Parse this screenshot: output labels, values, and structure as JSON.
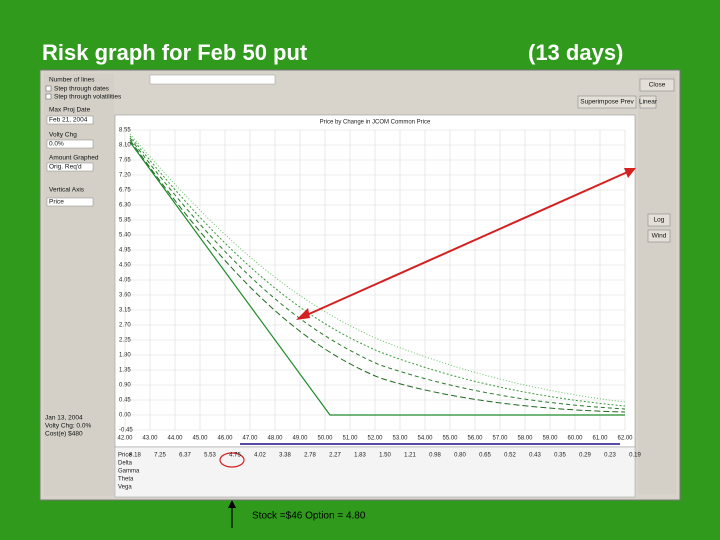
{
  "header": {
    "title": "Risk graph for Feb 50 put",
    "subtitle": "(13 days)"
  },
  "window": {
    "left_panel": [
      "Number of lines",
      "Step through dates",
      "Step through volatilities",
      "Max Proj Date",
      "Feb 21, 2004",
      "Volty Chg",
      "0.0%",
      "Amount Graphed",
      "Orig. Req'd",
      "Vertical Axis",
      "Price"
    ],
    "left_footer": [
      "Jan 13, 2004",
      "Volty Chg: 0.0%",
      "Cost(e) $480"
    ],
    "buttons": [
      "Close",
      "Superimpose Prev",
      "Linear",
      "Log",
      "Wind"
    ],
    "chart_title": "Price by Change in JCOM Common Price",
    "yticks": [
      "8.55",
      "8.10",
      "7.65",
      "7.20",
      "6.75",
      "6.30",
      "5.85",
      "5.40",
      "4.95",
      "4.50",
      "4.05",
      "3.60",
      "3.15",
      "2.70",
      "2.25",
      "1.80",
      "1.35",
      "0.90",
      "0.45",
      "0.00",
      "-0.45"
    ],
    "xticks": [
      "42.00",
      "43.00",
      "44.00",
      "45.00",
      "46.00",
      "47.00",
      "48.00",
      "49.00",
      "50.00",
      "51.00",
      "52.00",
      "53.00",
      "54.00",
      "55.00",
      "56.00",
      "57.00",
      "58.00",
      "59.00",
      "60.00",
      "61.00",
      "62.00"
    ],
    "table": {
      "row_labels": [
        "Price",
        "Delta",
        "Gamma",
        "Theta",
        "Vega"
      ],
      "price_row": [
        "8.18",
        "7.25",
        "6.37",
        "5.53",
        "4.75",
        "4.02",
        "3.38",
        "2.78",
        "2.27",
        "1.83",
        "1.50",
        "1.21",
        "0.98",
        "0.80",
        "0.65",
        "0.52",
        "0.43",
        "0.35",
        "0.29",
        "0.23",
        "0.19"
      ]
    }
  },
  "caption": "Stock =$46 Option = 4.80"
}
